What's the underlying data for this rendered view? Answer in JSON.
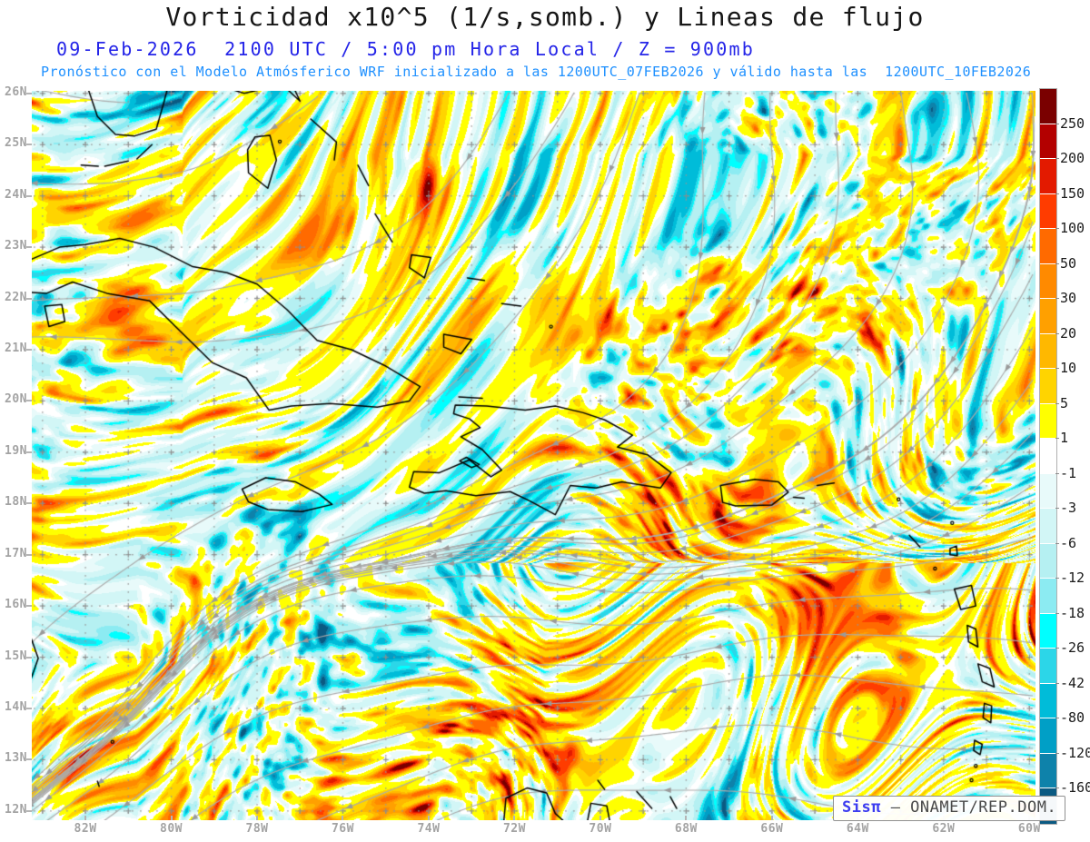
{
  "header": {
    "title": "Vorticidad x10^5 (1/s,somb.) y Lineas de flujo",
    "datetime_line": "09-Feb-2026  2100 UTC / 5:00 pm Hora Local / Z = 900mb",
    "forecast_line": "Pronóstico con el Modelo Atmósferico WRF inicializado a las 1200UTC_07FEB2026 y válido hasta las  1200UTC_10FEB2026",
    "title_color": "#161616",
    "datetime_color": "#2424e8",
    "forecast_color": "#1e90ff"
  },
  "map": {
    "lat_ticks": [
      "26N",
      "25N",
      "24N",
      "23N",
      "22N",
      "21N",
      "20N",
      "19N",
      "18N",
      "17N",
      "16N",
      "15N",
      "14N",
      "13N",
      "12N"
    ],
    "lon_ticks": [
      "82W",
      "80W",
      "78W",
      "76W",
      "74W",
      "72W",
      "70W",
      "68W",
      "66W",
      "64W",
      "62W",
      "60W"
    ],
    "overlays": {
      "streamline_color": "#ababab",
      "arrow_color": "#9a9a9a",
      "coastline_color": "#000000",
      "grid_color": "#969696"
    }
  },
  "colorbar": {
    "tick_labels": [
      "250",
      "200",
      "150",
      "100",
      "50",
      "30",
      "20",
      "10",
      "5",
      "1",
      "-1",
      "-3",
      "-6",
      "-12",
      "-18",
      "-26",
      "-42",
      "-80",
      "-120",
      "-160"
    ],
    "colors": [
      "#7a0000",
      "#b30000",
      "#e31a00",
      "#ff3c00",
      "#ff6a00",
      "#ff8a00",
      "#ffa000",
      "#ffb800",
      "#ffd400",
      "#ffff00",
      "#ffffff",
      "#e8fafa",
      "#d2f6f6",
      "#b5f0f2",
      "#8cebf2",
      "#00ffff",
      "#2cd6e8",
      "#00bcd9",
      "#009fc6",
      "#0e82aa",
      "#0b5a82"
    ]
  },
  "watermark": {
    "brand": "Sisπ",
    "org_text": " – ONAMET/REP.DOM."
  }
}
